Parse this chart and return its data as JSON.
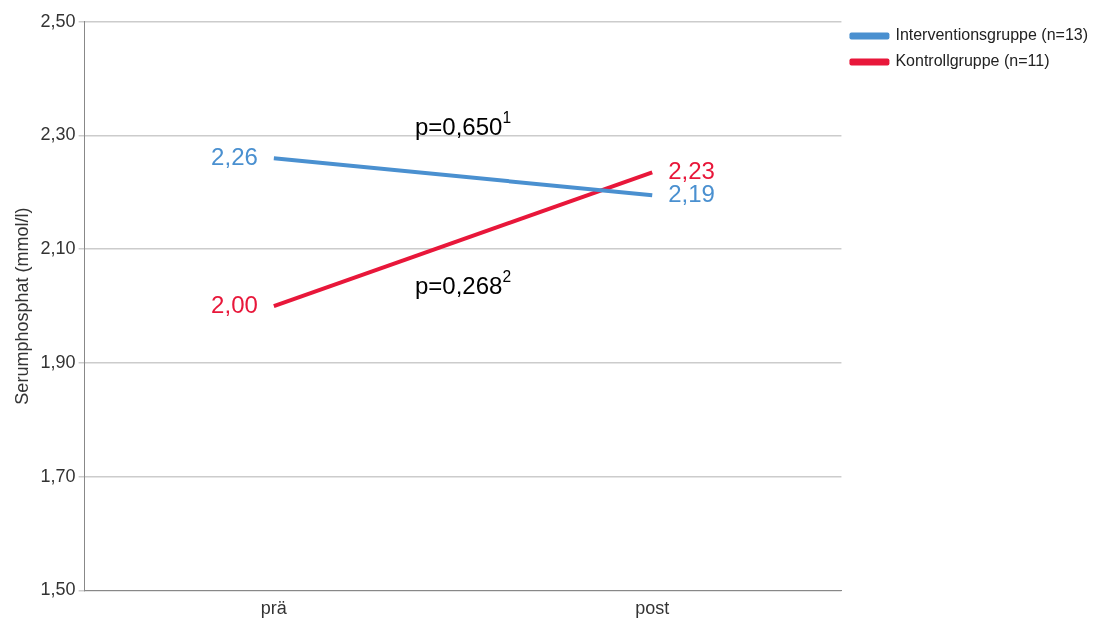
{
  "chart_data": {
    "type": "line",
    "ylabel": "Serumphosphat (mmol/l)",
    "categories": [
      "prä",
      "post"
    ],
    "series": [
      {
        "name": "Interventionsgruppe (n=13)",
        "color": "#4a90d0",
        "values": [
          2.26,
          2.195
        ],
        "value_labels": [
          "2,26",
          "2,19"
        ]
      },
      {
        "name": "Kontrollgruppe (n=11)",
        "color": "#e8173a",
        "values": [
          2.0,
          2.235
        ],
        "value_labels": [
          "2,00",
          "2,23"
        ]
      }
    ],
    "annotations": [
      "p=0,650$^{1}$",
      "p=0,268$^{2}$"
    ],
    "ylim": [
      1.5,
      2.5
    ],
    "yticks": [
      {
        "value": 1.5,
        "label": "1,50"
      },
      {
        "value": 1.7,
        "label": "1,70"
      },
      {
        "value": 1.9,
        "label": "1,90"
      },
      {
        "value": 2.1,
        "label": "2,10"
      },
      {
        "value": 2.3,
        "label": "2,30"
      },
      {
        "value": 2.5,
        "label": "2,50"
      }
    ],
    "grid": "y",
    "legend": "top right",
    "marker": "none",
    "line_style": "solid"
  }
}
